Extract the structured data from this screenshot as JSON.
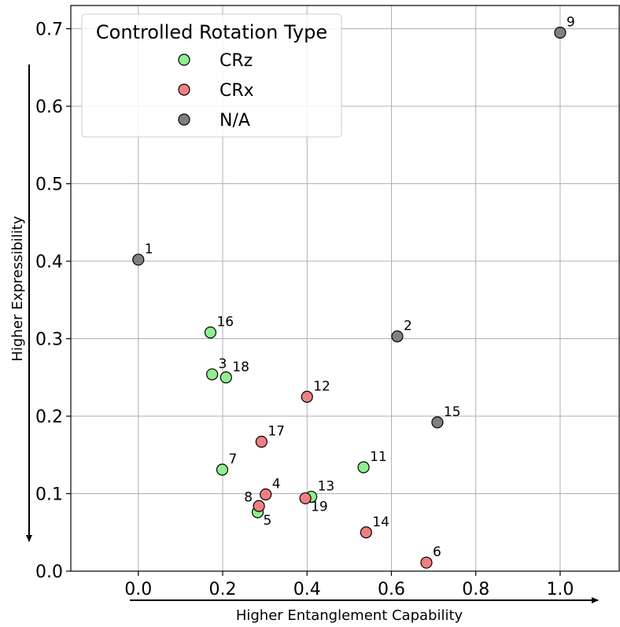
{
  "chart_data": {
    "type": "scatter",
    "xlabel": "Higher Entanglement Capability",
    "ylabel": "Higher Expressibility",
    "xlim": [
      -0.16,
      1.14
    ],
    "ylim": [
      0.0,
      0.73
    ],
    "xticks": [
      0.0,
      0.2,
      0.4,
      0.6,
      0.8,
      1.0
    ],
    "xtick_labels": [
      "0.0",
      "0.2",
      "0.4",
      "0.6",
      "0.8",
      "1.0"
    ],
    "yticks": [
      0.0,
      0.1,
      0.2,
      0.3,
      0.4,
      0.5,
      0.6,
      0.7
    ],
    "ytick_labels": [
      "0.0",
      "0.1",
      "0.2",
      "0.3",
      "0.4",
      "0.5",
      "0.6",
      "0.7"
    ],
    "grid": true,
    "legend": {
      "title": "Controlled Rotation Type",
      "placement": "top-left",
      "entries": [
        {
          "label": "CRz",
          "color": "#90ee90"
        },
        {
          "label": "CRx",
          "color": "#f08080"
        },
        {
          "label": "N/A",
          "color": "#808080"
        }
      ]
    },
    "points": [
      {
        "label": "1",
        "x": 0.0,
        "y": 0.402,
        "type": "N/A",
        "label_pos": "upper-right"
      },
      {
        "label": "2",
        "x": 0.614,
        "y": 0.303,
        "type": "N/A",
        "label_pos": "upper-right"
      },
      {
        "label": "3",
        "x": 0.175,
        "y": 0.254,
        "type": "CRz",
        "label_pos": "upper-right"
      },
      {
        "label": "4",
        "x": 0.302,
        "y": 0.099,
        "type": "CRx",
        "label_pos": "upper-right"
      },
      {
        "label": "5",
        "x": 0.283,
        "y": 0.076,
        "type": "CRz",
        "label_pos": "lower-right"
      },
      {
        "label": "6",
        "x": 0.683,
        "y": 0.011,
        "type": "CRx",
        "label_pos": "upper-right"
      },
      {
        "label": "7",
        "x": 0.199,
        "y": 0.131,
        "type": "CRz",
        "label_pos": "upper-right"
      },
      {
        "label": "8",
        "x": 0.286,
        "y": 0.084,
        "type": "CRx",
        "label_pos": "upper-left"
      },
      {
        "label": "9",
        "x": 1.0,
        "y": 0.695,
        "type": "N/A",
        "label_pos": "upper-right"
      },
      {
        "label": "11",
        "x": 0.534,
        "y": 0.134,
        "type": "CRz",
        "label_pos": "upper-right"
      },
      {
        "label": "12",
        "x": 0.4,
        "y": 0.225,
        "type": "CRx",
        "label_pos": "upper-right"
      },
      {
        "label": "13",
        "x": 0.41,
        "y": 0.096,
        "type": "CRz",
        "label_pos": "upper-right"
      },
      {
        "label": "14",
        "x": 0.54,
        "y": 0.05,
        "type": "CRx",
        "label_pos": "upper-right"
      },
      {
        "label": "15",
        "x": 0.709,
        "y": 0.192,
        "type": "N/A",
        "label_pos": "upper-right"
      },
      {
        "label": "16",
        "x": 0.171,
        "y": 0.308,
        "type": "CRz",
        "label_pos": "upper-right"
      },
      {
        "label": "17",
        "x": 0.292,
        "y": 0.167,
        "type": "CRx",
        "label_pos": "upper-right"
      },
      {
        "label": "18",
        "x": 0.208,
        "y": 0.25,
        "type": "CRz",
        "label_pos": "upper-right"
      },
      {
        "label": "19",
        "x": 0.396,
        "y": 0.094,
        "type": "CRx",
        "label_pos": "lower-right"
      }
    ]
  }
}
